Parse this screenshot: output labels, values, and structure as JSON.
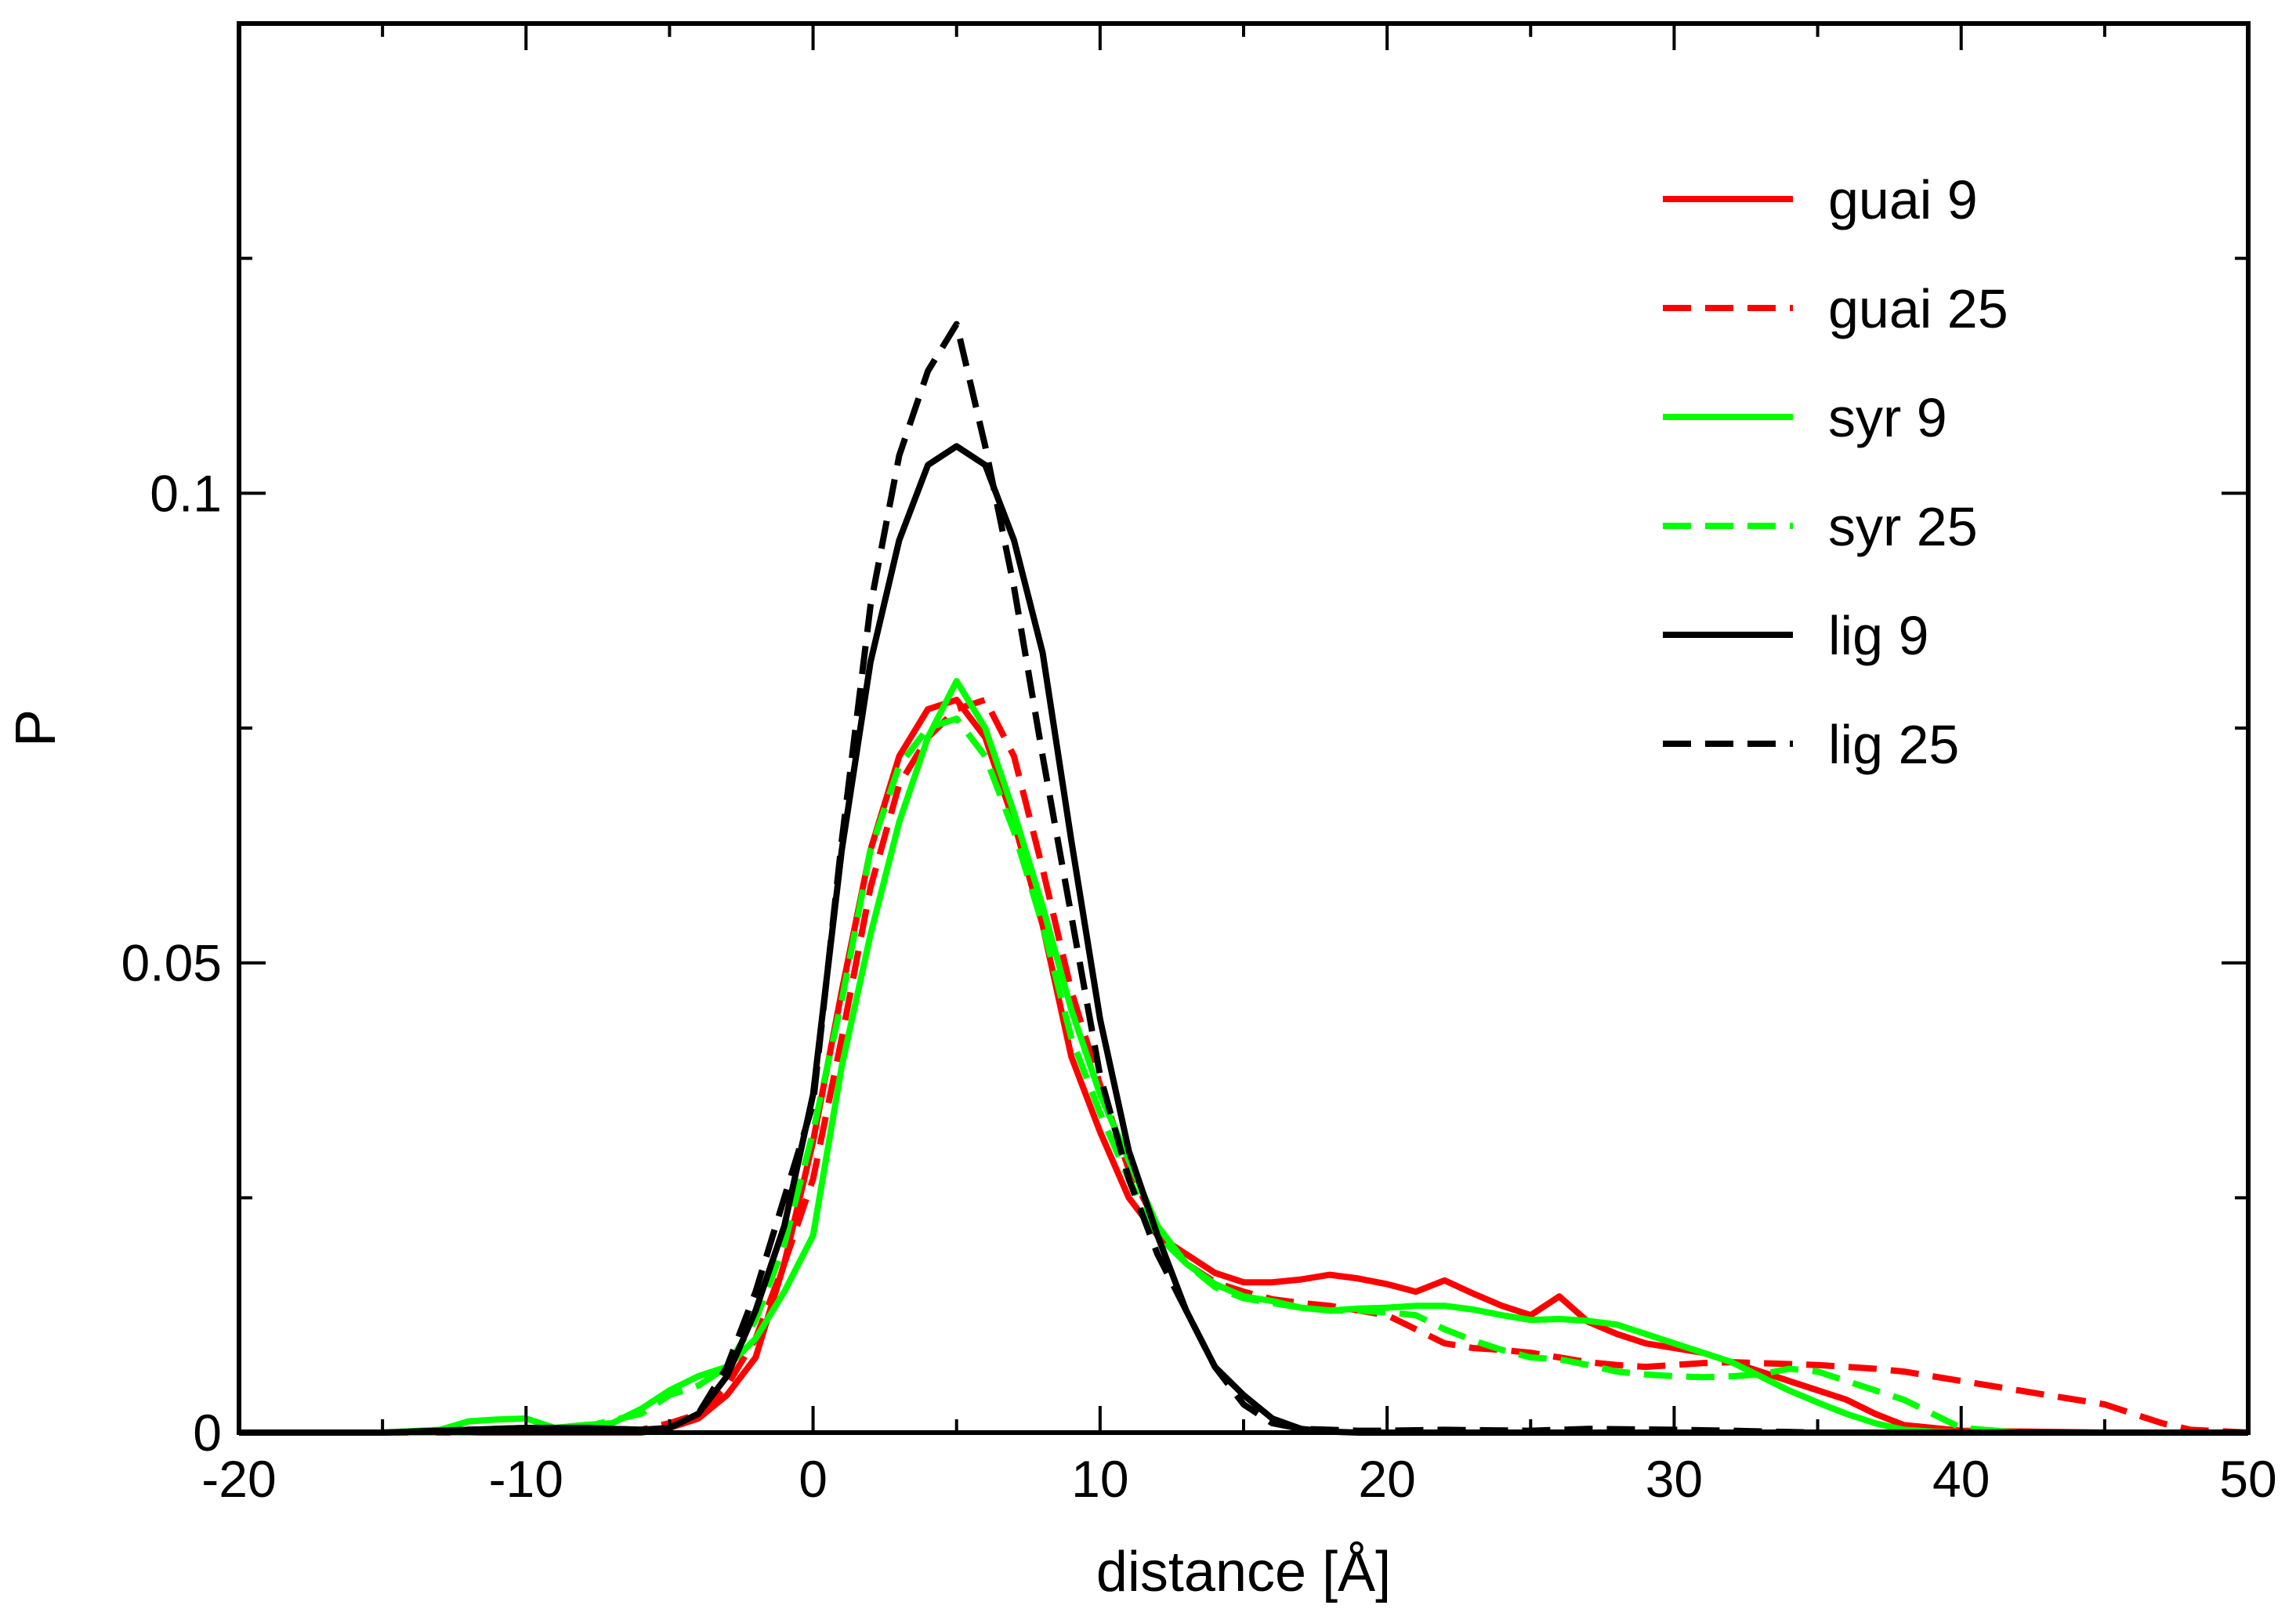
{
  "chart_data": {
    "type": "line",
    "title": "",
    "xlabel": "distance [Å]",
    "ylabel": "P",
    "xlim": [
      -20,
      50
    ],
    "ylim": [
      0,
      0.15
    ],
    "xticks": [
      {
        "value": -20,
        "label": "-20"
      },
      {
        "value": -10,
        "label": "-10"
      },
      {
        "value": 0,
        "label": "0"
      },
      {
        "value": 10,
        "label": "10"
      },
      {
        "value": 20,
        "label": "20"
      },
      {
        "value": 30,
        "label": "30"
      },
      {
        "value": 40,
        "label": "40"
      },
      {
        "value": 50,
        "label": "50"
      }
    ],
    "yticks": [
      {
        "value": 0,
        "label": "0"
      },
      {
        "value": 0.05,
        "label": "0.05"
      },
      {
        "value": 0.1,
        "label": "0.1"
      }
    ],
    "x_minor_step": 5,
    "y_minor_step": 0.025,
    "legend_position": "top-right",
    "series": [
      {
        "name": "guai 9",
        "color": "#ff0000",
        "dash": "solid",
        "x": [
          -20,
          -16,
          -14,
          -12,
          -10,
          -8,
          -6,
          -5,
          -4,
          -3,
          -2,
          -1,
          0,
          1,
          2,
          3,
          4,
          5,
          6,
          7,
          8,
          9,
          10,
          11,
          12,
          13,
          14,
          15,
          16,
          17,
          18,
          19,
          20,
          21,
          22,
          23,
          24,
          25,
          26,
          27,
          28,
          29,
          30,
          31,
          32,
          33,
          34,
          35,
          36,
          37,
          38,
          40,
          45,
          50
        ],
        "y": [
          0,
          0,
          0,
          0,
          0,
          0,
          0,
          0.0005,
          0.0015,
          0.004,
          0.008,
          0.018,
          0.031,
          0.047,
          0.062,
          0.072,
          0.077,
          0.078,
          0.074,
          0.065,
          0.054,
          0.04,
          0.032,
          0.025,
          0.021,
          0.019,
          0.017,
          0.016,
          0.016,
          0.0163,
          0.0168,
          0.0164,
          0.0158,
          0.015,
          0.0162,
          0.0148,
          0.0135,
          0.0125,
          0.0145,
          0.0118,
          0.0105,
          0.0095,
          0.009,
          0.0085,
          0.0075,
          0.0065,
          0.0055,
          0.0045,
          0.0035,
          0.002,
          0.0008,
          0.0002,
          0,
          0
        ]
      },
      {
        "name": "guai 25",
        "color": "#ff0000",
        "dash": "dashed",
        "x": [
          -20,
          -16,
          -12,
          -8,
          -6,
          -5,
          -4,
          -3,
          -2,
          -1,
          0,
          1,
          2,
          3,
          4,
          5,
          6,
          7,
          8,
          9,
          10,
          11,
          12,
          13,
          14,
          15,
          16,
          17,
          18,
          19,
          20,
          21,
          22,
          23,
          24,
          25,
          26,
          27,
          28,
          29,
          30,
          31,
          32,
          33,
          34,
          35,
          36,
          37,
          38,
          39,
          40,
          41,
          42,
          43,
          44,
          45,
          46,
          47,
          48,
          50
        ],
        "y": [
          0,
          0,
          0,
          0,
          0.0003,
          0.001,
          0.002,
          0.005,
          0.01,
          0.018,
          0.027,
          0.042,
          0.058,
          0.069,
          0.074,
          0.077,
          0.078,
          0.072,
          0.06,
          0.047,
          0.037,
          0.028,
          0.022,
          0.018,
          0.016,
          0.015,
          0.0142,
          0.0138,
          0.0135,
          0.013,
          0.0125,
          0.011,
          0.0095,
          0.009,
          0.0088,
          0.0085,
          0.008,
          0.0075,
          0.0072,
          0.007,
          0.0072,
          0.0074,
          0.0075,
          0.0074,
          0.0073,
          0.0072,
          0.007,
          0.0068,
          0.0065,
          0.006,
          0.0055,
          0.005,
          0.0045,
          0.004,
          0.0035,
          0.003,
          0.002,
          0.001,
          0.0003,
          0
        ]
      },
      {
        "name": "syr 9",
        "color": "#00ff00",
        "dash": "solid",
        "x": [
          -20,
          -15,
          -13,
          -12,
          -11,
          -10,
          -9,
          -8,
          -7,
          -6,
          -5,
          -4,
          -3,
          -2,
          -1,
          0,
          1,
          2,
          3,
          4,
          5,
          6,
          7,
          8,
          9,
          10,
          11,
          12,
          13,
          14,
          15,
          16,
          17,
          18,
          19,
          20,
          21,
          22,
          23,
          24,
          25,
          26,
          27,
          28,
          29,
          30,
          31,
          32,
          33,
          34,
          35,
          36,
          37,
          38,
          39,
          40,
          41,
          42,
          50
        ],
        "y": [
          0,
          0,
          0.0003,
          0.0012,
          0.0014,
          0.0015,
          0.0005,
          0.0008,
          0.001,
          0.0025,
          0.0045,
          0.006,
          0.007,
          0.01,
          0.015,
          0.021,
          0.039,
          0.053,
          0.065,
          0.074,
          0.08,
          0.075,
          0.066,
          0.056,
          0.045,
          0.036,
          0.029,
          0.022,
          0.018,
          0.0158,
          0.0145,
          0.014,
          0.0133,
          0.013,
          0.0132,
          0.0133,
          0.0135,
          0.0135,
          0.0131,
          0.0125,
          0.012,
          0.0121,
          0.0119,
          0.0115,
          0.0105,
          0.0095,
          0.0085,
          0.0075,
          0.006,
          0.0045,
          0.0032,
          0.002,
          0.001,
          0.0003,
          0.0001,
          0,
          0.0002,
          0,
          0
        ]
      },
      {
        "name": "syr 25",
        "color": "#00ff00",
        "dash": "dashed",
        "x": [
          -20,
          -12,
          -10,
          -8,
          -6,
          -5,
          -4,
          -3,
          -2,
          -1,
          0,
          1,
          2,
          3,
          4,
          5,
          6,
          7,
          8,
          9,
          10,
          11,
          12,
          13,
          14,
          15,
          16,
          17,
          18,
          19,
          20,
          21,
          22,
          23,
          24,
          25,
          26,
          27,
          28,
          29,
          30,
          31,
          32,
          33,
          34,
          35,
          36,
          37,
          38,
          39,
          40,
          42,
          50
        ],
        "y": [
          0,
          0,
          0.0004,
          0.0006,
          0.002,
          0.004,
          0.005,
          0.007,
          0.012,
          0.02,
          0.032,
          0.046,
          0.062,
          0.071,
          0.075,
          0.076,
          0.072,
          0.064,
          0.054,
          0.042,
          0.034,
          0.027,
          0.021,
          0.018,
          0.0155,
          0.0143,
          0.0138,
          0.0133,
          0.013,
          0.013,
          0.0128,
          0.0125,
          0.011,
          0.0098,
          0.0088,
          0.008,
          0.0078,
          0.0072,
          0.0065,
          0.0062,
          0.006,
          0.0059,
          0.006,
          0.0062,
          0.0068,
          0.0065,
          0.0055,
          0.0045,
          0.0035,
          0.002,
          0.0005,
          0,
          0
        ]
      },
      {
        "name": "lig 9",
        "color": "#000000",
        "dash": "solid",
        "x": [
          -20,
          -15,
          -12,
          -10,
          -8,
          -6,
          -5,
          -4,
          -3,
          -2,
          -1,
          0,
          1,
          2,
          3,
          4,
          5,
          6,
          7,
          8,
          9,
          10,
          11,
          12,
          13,
          14,
          15,
          16,
          17,
          18,
          19,
          20,
          25,
          30,
          35,
          40,
          45,
          50
        ],
        "y": [
          0,
          0,
          0.0003,
          0.0005,
          0.0005,
          0.0003,
          0.0005,
          0.002,
          0.006,
          0.013,
          0.022,
          0.036,
          0.062,
          0.082,
          0.095,
          0.103,
          0.105,
          0.103,
          0.095,
          0.083,
          0.063,
          0.044,
          0.03,
          0.021,
          0.013,
          0.007,
          0.004,
          0.0015,
          0.0004,
          0.0001,
          0,
          0,
          0,
          0,
          0,
          0,
          0,
          0
        ]
      },
      {
        "name": "lig 25",
        "color": "#000000",
        "dash": "dashed",
        "x": [
          -20,
          -15,
          -12,
          -10,
          -8,
          -6,
          -5,
          -4,
          -3,
          -2,
          -1,
          0,
          1,
          2,
          3,
          4,
          5,
          6,
          7,
          8,
          9,
          10,
          11,
          12,
          13,
          14,
          15,
          16,
          17,
          18,
          19,
          20,
          22,
          25,
          27,
          30,
          32,
          35,
          40,
          45,
          50
        ],
        "y": [
          0,
          0,
          0.0003,
          0.0005,
          0.0005,
          0.0003,
          0.0005,
          0.002,
          0.007,
          0.015,
          0.025,
          0.035,
          0.063,
          0.088,
          0.104,
          0.113,
          0.118,
          0.105,
          0.09,
          0.072,
          0.055,
          0.038,
          0.027,
          0.019,
          0.013,
          0.007,
          0.003,
          0.001,
          0.0004,
          0.0003,
          0.0002,
          0.0002,
          0.0003,
          0.0002,
          0.0004,
          0.0003,
          0.0002,
          0,
          0,
          0,
          0
        ]
      }
    ]
  }
}
